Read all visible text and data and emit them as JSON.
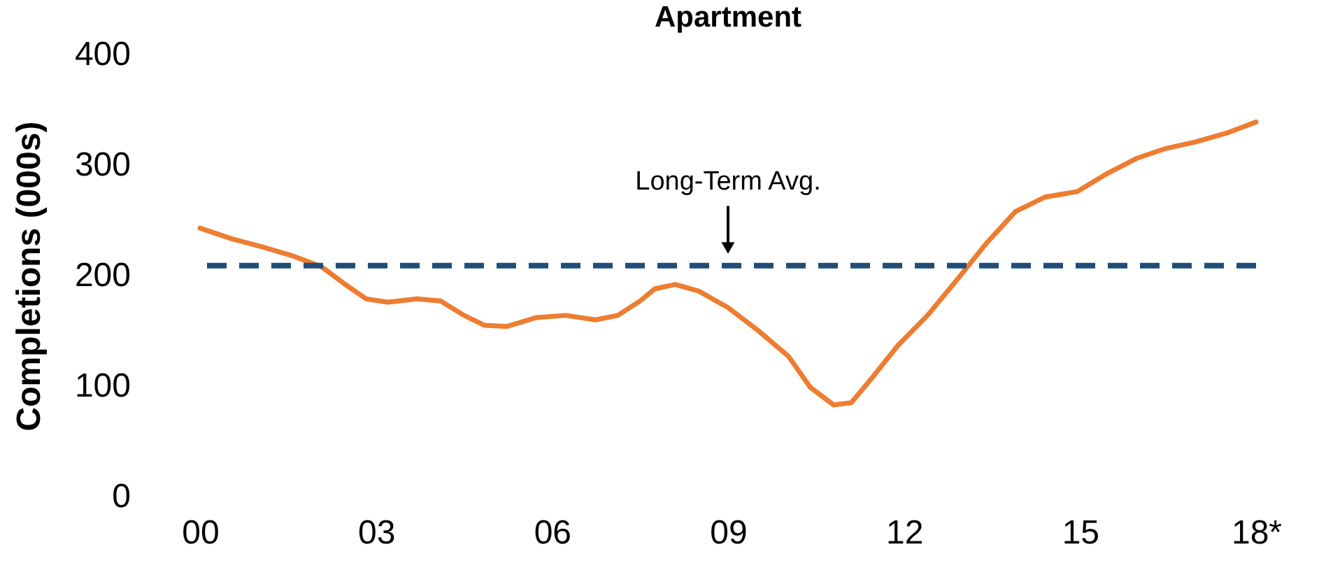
{
  "chart_data": {
    "type": "line",
    "title": "Apartment",
    "ylabel": "Completions (000s)",
    "x": [
      0,
      0.56,
      1.06,
      1.57,
      2.07,
      2.45,
      2.83,
      3.2,
      3.7,
      4.1,
      4.5,
      4.85,
      5.23,
      5.73,
      6.24,
      6.74,
      7.12,
      7.5,
      7.75,
      8.1,
      8.5,
      9.0,
      9.52,
      10.03,
      10.4,
      10.8,
      11.1,
      11.4,
      11.9,
      12.4,
      12.9,
      13.4,
      13.9,
      14.4,
      14.95,
      15.45,
      15.96,
      16.46,
      16.97,
      17.5,
      18
    ],
    "series": [
      {
        "color": "#ed7d31",
        "values": [
          243,
          233,
          226,
          218,
          208,
          193,
          179,
          176,
          179,
          177,
          164,
          155,
          154,
          162,
          164,
          160,
          164,
          177,
          188,
          192,
          186,
          171,
          150,
          127,
          99,
          83,
          85,
          104,
          137,
          164,
          196,
          229,
          258,
          271,
          276,
          292,
          306,
          315,
          321,
          329,
          339
        ]
      }
    ],
    "xlim": [
      0,
      18
    ],
    "xticks": [
      {
        "value": 0,
        "label": "00"
      },
      {
        "value": 3,
        "label": "03"
      },
      {
        "value": 6,
        "label": "06"
      },
      {
        "value": 9,
        "label": "09"
      },
      {
        "value": 12,
        "label": "12"
      },
      {
        "value": 15,
        "label": "15"
      },
      {
        "value": 18,
        "label": "18*"
      }
    ],
    "ylim": [
      0,
      400
    ],
    "yticks": [
      0,
      100,
      200,
      300,
      400
    ],
    "ref_lines": [
      {
        "axis": "y",
        "value": 209,
        "color": "#1f4e79",
        "line_style": "dashed"
      }
    ],
    "annotations": [
      {
        "text": "Long-Term Avg.",
        "x": 9,
        "y": 209
      }
    ],
    "grid": false,
    "marker": "none",
    "line_style": "solid"
  }
}
